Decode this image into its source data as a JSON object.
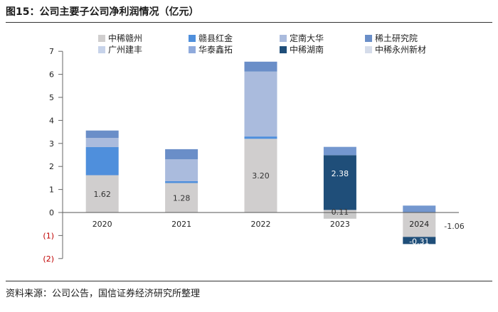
{
  "title": "图15：公司主要子公司净利润情况（亿元）",
  "source": "资料来源：公司公告，国信证券经济研究所整理",
  "chart_data": {
    "type": "bar",
    "stacked": true,
    "categories": [
      "2020",
      "2021",
      "2022",
      "2023",
      "2024"
    ],
    "ylim": [
      -2,
      7
    ],
    "yticks": [
      -2,
      -1,
      0,
      1,
      2,
      3,
      4,
      5,
      6,
      7
    ],
    "ytick_labels": [
      "(2)",
      "(1)",
      "0",
      "1",
      "2",
      "3",
      "4",
      "5",
      "6",
      "7"
    ],
    "legend_position": "top",
    "grid": false,
    "series": [
      {
        "name": "中稀赣州",
        "color": "#d0cece",
        "values": [
          1.62,
          1.28,
          3.2,
          0.11,
          -1.06
        ]
      },
      {
        "name": "赣县红金",
        "color": "#4f8fdc",
        "values": [
          1.22,
          0.08,
          0.1,
          0.0,
          0.0
        ]
      },
      {
        "name": "定南大华",
        "color": "#aabbdd",
        "values": [
          0.4,
          0.95,
          2.82,
          0.0,
          0.0
        ]
      },
      {
        "name": "稀土研究院",
        "color": "#6a8ec8",
        "values": [
          0.32,
          0.44,
          0.43,
          0.0,
          0.0
        ]
      },
      {
        "name": "广州建丰",
        "color": "#c7d3ea",
        "values": [
          0.0,
          0.0,
          0.0,
          0.0,
          0.0
        ]
      },
      {
        "name": "华泰鑫拓",
        "color": "#8faadc",
        "values": [
          0.0,
          0.0,
          0.0,
          0.0,
          0.0
        ]
      },
      {
        "name": "中稀湖南",
        "color": "#1f4e79",
        "values": [
          0.0,
          0.0,
          0.0,
          2.38,
          0.0
        ]
      },
      {
        "name": "中稀永州新材",
        "color": "#d5dcea",
        "values": [
          0.0,
          0.0,
          0.0,
          0.0,
          0.0
        ]
      }
    ],
    "extra_segments": [
      {
        "category": "2023",
        "color": "#7497cf",
        "value": 0.36
      },
      {
        "category": "2023",
        "color": "#c9c9c9",
        "value": -0.27
      },
      {
        "category": "2024",
        "color": "#7497cf",
        "value": 0.3
      },
      {
        "category": "2024",
        "color": "#1f4e79",
        "value": -0.31
      }
    ],
    "data_labels": [
      {
        "category": "2020",
        "text": "1.62",
        "y": 0.81,
        "color": "#333333",
        "align": "in"
      },
      {
        "category": "2021",
        "text": "1.28",
        "y": 0.64,
        "color": "#333333",
        "align": "in"
      },
      {
        "category": "2022",
        "text": "3.20",
        "y": 1.6,
        "color": "#333333",
        "align": "in"
      },
      {
        "category": "2023",
        "text": "2.38",
        "y": 1.7,
        "color": "#ffffff",
        "align": "in"
      },
      {
        "category": "2023",
        "text": "0.11",
        "y": 0.03,
        "color": "#333333",
        "align": "in"
      },
      {
        "category": "2024",
        "text": "-1.06",
        "y": -0.58,
        "color": "#333333",
        "align": "right"
      },
      {
        "category": "2024",
        "text": "-0.31",
        "y": -1.25,
        "color": "#ffffff",
        "align": "in"
      }
    ]
  }
}
